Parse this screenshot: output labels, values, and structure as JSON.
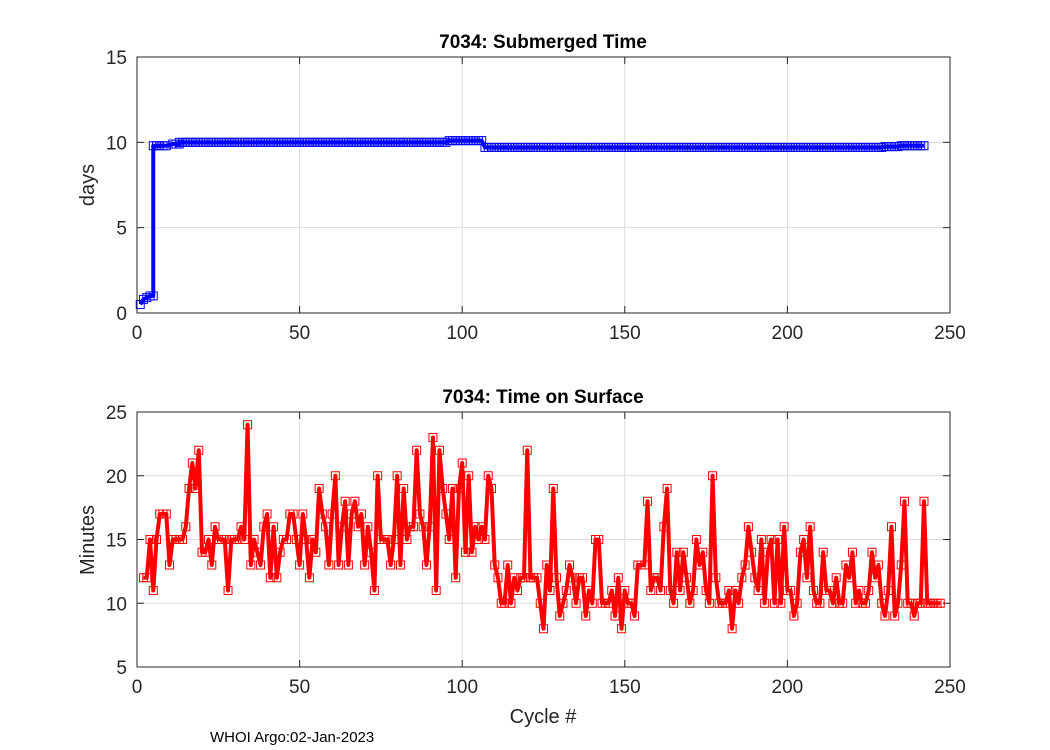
{
  "chart_data": [
    {
      "type": "line",
      "title": "7034: Submerged Time",
      "xlabel": "",
      "ylabel": "days",
      "xlim": [
        0,
        250
      ],
      "ylim": [
        0,
        15
      ],
      "xticks": [
        0,
        50,
        100,
        150,
        200,
        250
      ],
      "yticks": [
        0,
        5,
        10,
        15
      ],
      "grid": true,
      "color": "#0000ff",
      "series": [
        {
          "name": "Submerged Time",
          "segments": [
            {
              "x_start": 1,
              "x_end": 5,
              "y": [
                0.5,
                0.8,
                0.9,
                1.0,
                1.0
              ]
            },
            {
              "x_start": 5,
              "x_end": 9,
              "y": [
                9.8,
                9.8,
                9.8,
                9.8,
                9.8
              ]
            },
            {
              "x_start": 11,
              "x_end": 13,
              "y": [
                9.9,
                9.9,
                9.9
              ]
            },
            {
              "x_start": 13,
              "x_end": 95,
              "y_const": 10.0
            },
            {
              "x_start": 96,
              "x_end": 106,
              "y_const": 10.1
            },
            {
              "x_start": 107,
              "x_end": 229,
              "y_const": 9.7
            },
            {
              "x_start": 230,
              "x_end": 234,
              "y_const": 9.75
            },
            {
              "x_start": 235,
              "x_end": 242,
              "y_const": 9.8
            }
          ]
        }
      ]
    },
    {
      "type": "line",
      "title": "7034: Time on Surface",
      "xlabel": "Cycle #",
      "ylabel": "Minutes",
      "xlim": [
        0,
        250
      ],
      "ylim": [
        5,
        25
      ],
      "xticks": [
        0,
        50,
        100,
        150,
        200,
        250
      ],
      "yticks": [
        5,
        10,
        15,
        20,
        25
      ],
      "grid": true,
      "color": "#ff0000",
      "series": [
        {
          "name": "Time on Surface",
          "x_start": 2,
          "values": [
            12,
            12,
            15,
            11,
            15,
            17,
            17,
            17,
            13,
            15,
            15,
            15,
            15,
            16,
            19,
            21,
            19,
            22,
            14,
            14,
            15,
            13,
            16,
            15,
            15,
            15,
            11,
            15,
            15,
            15,
            16,
            15,
            24,
            13,
            15,
            14,
            13,
            16,
            17,
            12,
            16,
            12,
            14,
            15,
            15,
            17,
            17,
            15,
            13,
            17,
            15,
            12,
            15,
            14,
            19,
            17,
            16,
            13,
            17,
            20,
            13,
            16,
            18,
            13,
            17,
            18,
            16,
            17,
            13,
            16,
            14,
            11,
            20,
            15,
            15,
            15,
            13,
            15,
            20,
            13,
            19,
            15,
            16,
            16,
            22,
            17,
            16,
            13,
            16,
            23,
            11,
            22,
            19,
            17,
            15,
            19,
            12,
            19,
            21,
            14,
            20,
            14,
            16,
            15,
            16,
            15,
            20,
            19,
            13,
            12,
            10,
            10,
            13,
            10,
            12,
            11,
            12,
            12,
            22,
            12,
            12,
            12,
            10,
            8,
            13,
            11,
            19,
            12,
            9,
            10,
            11,
            13,
            12,
            10,
            12,
            12,
            9,
            11,
            10,
            15,
            15,
            10,
            10,
            10,
            11,
            9,
            12,
            8,
            11,
            10,
            10,
            9,
            13,
            13,
            13,
            18,
            11,
            12,
            12,
            11,
            16,
            19,
            11,
            10,
            14,
            11,
            14,
            12,
            10,
            11,
            15,
            13,
            14,
            11,
            10,
            20,
            12,
            10,
            10,
            10,
            11,
            8,
            11,
            10,
            12,
            13,
            16,
            14,
            12,
            11,
            15,
            10,
            14,
            15,
            10,
            15,
            10,
            16,
            11,
            11,
            9,
            10,
            14,
            15,
            12,
            16,
            11,
            10,
            10,
            14,
            11,
            11,
            10,
            12,
            10,
            10,
            13,
            12,
            14,
            10,
            11,
            10,
            10,
            11,
            14,
            12,
            13,
            10,
            9,
            11,
            16,
            9,
            10,
            13,
            18,
            10,
            10,
            9,
            10,
            10,
            18,
            10,
            10,
            10,
            10,
            10
          ]
        }
      ]
    }
  ],
  "footer": "WHOI Argo:02-Jan-2023"
}
